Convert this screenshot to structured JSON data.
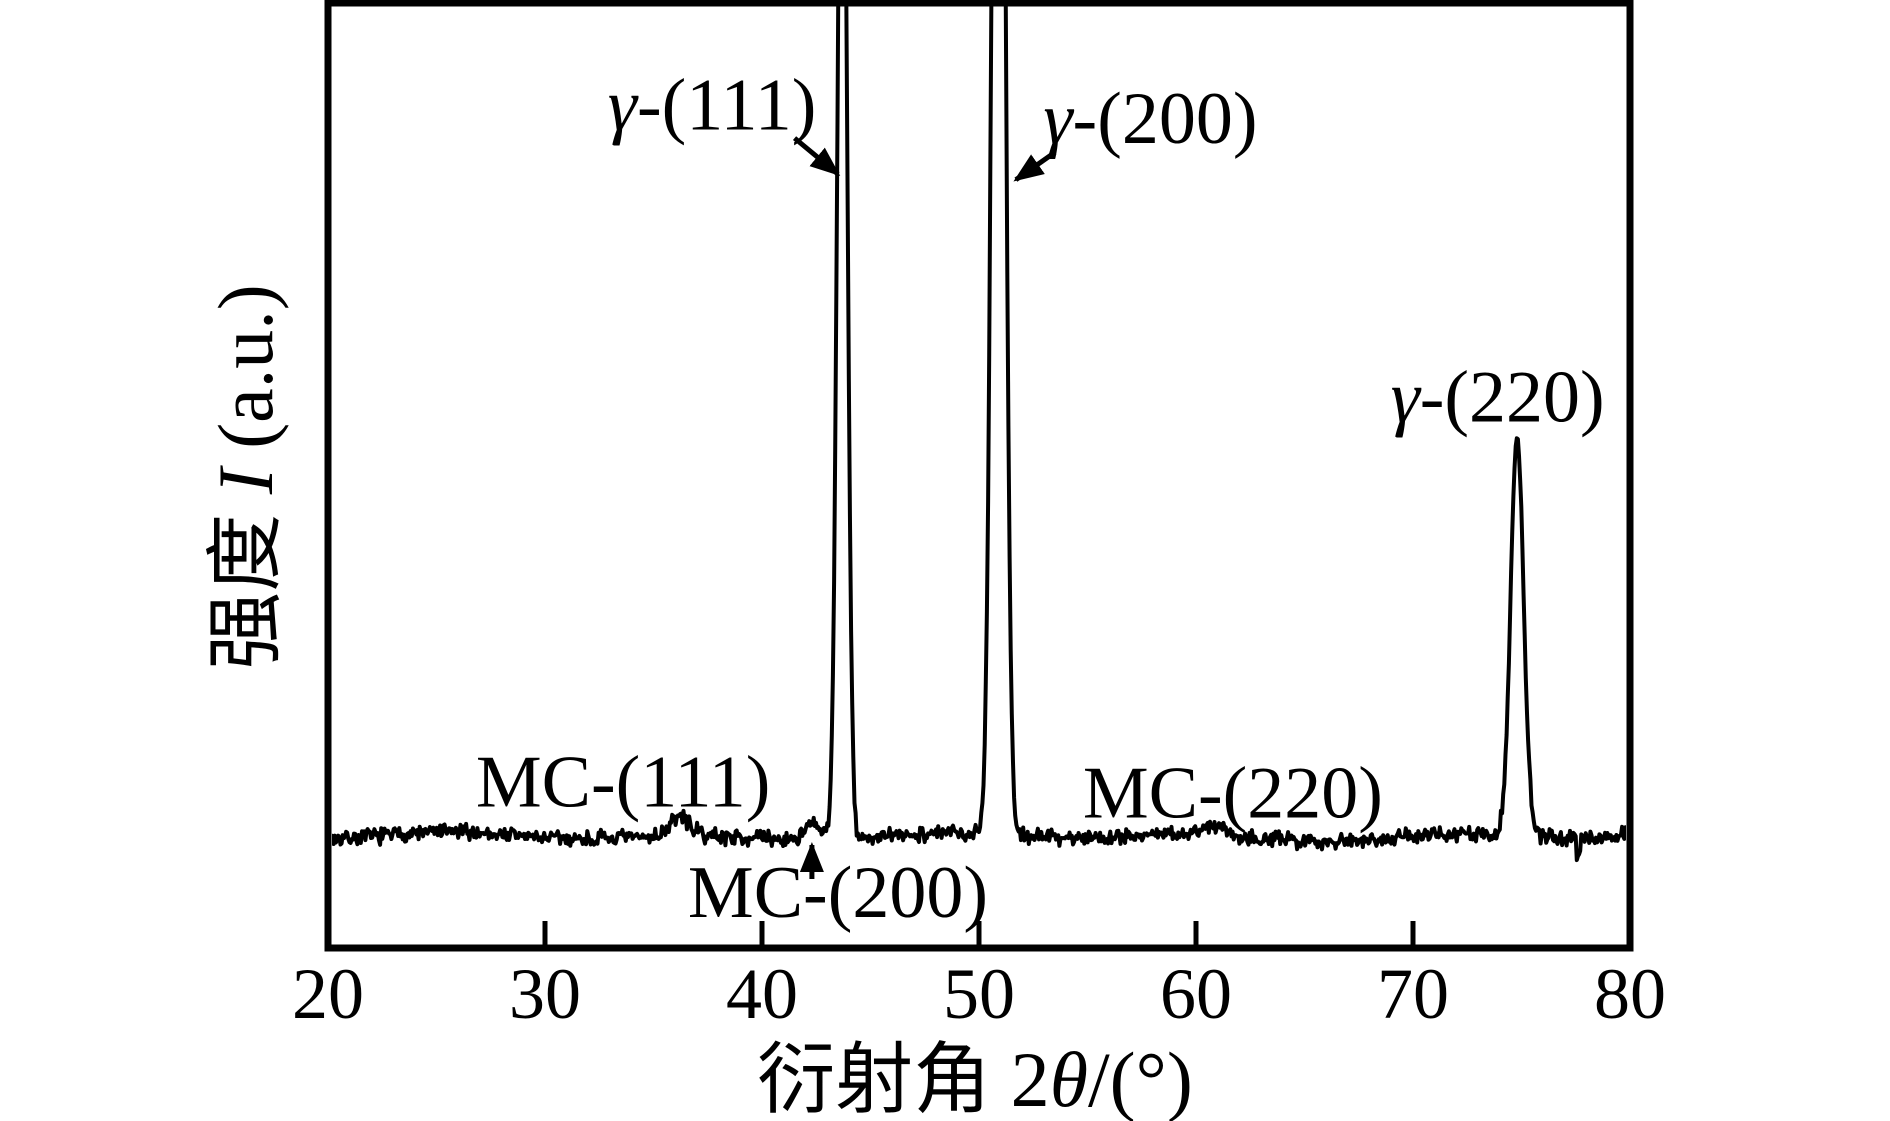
{
  "figure": {
    "background": "#ffffff",
    "ink": "#000000",
    "description": "XRD diffraction pattern with austenite (γ) and MC carbide peaks"
  },
  "chart_data": {
    "type": "line",
    "series_name": "XRD intensity trace",
    "xlabel": "衍射角 2θ/(°)",
    "xlabel_parts": [
      "衍射角 2",
      "θ",
      "/(°)"
    ],
    "ylabel": "强度 I (a.u.)",
    "ylabel_parts": [
      "强度 ",
      "I",
      " (a.u.)"
    ],
    "xlim": [
      20,
      80
    ],
    "x_ticks": [
      20,
      30,
      40,
      50,
      60,
      70,
      80
    ],
    "y_ticks": [],
    "grid": false,
    "legend": null,
    "baseline_level": 0.118,
    "noise_amplitude": 0.01,
    "peaks": [
      {
        "phase": "MC",
        "hkl": "(111)",
        "center": 36.2,
        "sigma": 0.45,
        "height": 0.02,
        "clipped": false
      },
      {
        "phase": "MC",
        "hkl": "(200)",
        "center": 42.35,
        "sigma": 0.4,
        "height": 0.016,
        "clipped": false
      },
      {
        "phase": "γ",
        "hkl": "(111)",
        "center": 43.7,
        "sigma": 0.215,
        "height": 1.3,
        "clipped": true
      },
      {
        "phase": "γ",
        "hkl": "(200)",
        "center": 50.9,
        "sigma": 0.26,
        "height": 2.0,
        "clipped": true
      },
      {
        "phase": "MC",
        "hkl": "(220)",
        "center": 60.9,
        "sigma": 0.45,
        "height": 0.011,
        "clipped": false
      },
      {
        "phase": "γ",
        "hkl": "(220)",
        "center": 74.8,
        "sigma": 0.3,
        "height": 0.422,
        "clipped": false
      },
      {
        "phase": "artifact",
        "hkl": "",
        "center": 77.6,
        "sigma": 0.06,
        "height": -0.022,
        "clipped": false
      }
    ],
    "annotations": [
      {
        "text": "γ-(111)",
        "x": 37.7,
        "y": 0.866,
        "arrow": {
          "x1": 41.5,
          "y1": 0.857,
          "x2": 43.5,
          "y2": 0.819
        }
      },
      {
        "text": "γ-(200)",
        "x": 57.9,
        "y": 0.852,
        "arrow": {
          "x1": 53.5,
          "y1": 0.842,
          "x2": 51.7,
          "y2": 0.813
        }
      },
      {
        "text": "γ-(220)",
        "x": 73.9,
        "y": 0.557,
        "arrow": null
      },
      {
        "text": "MC-(111)",
        "x": 33.6,
        "y": 0.15,
        "arrow": null
      },
      {
        "text": "MC-(200)",
        "x": 43.5,
        "y": 0.033,
        "arrow": {
          "x1": 42.3,
          "y1": 0.073,
          "x2": 42.3,
          "y2": 0.109
        }
      },
      {
        "text": "MC-(220)",
        "x": 61.7,
        "y": 0.138,
        "arrow": null
      }
    ]
  }
}
